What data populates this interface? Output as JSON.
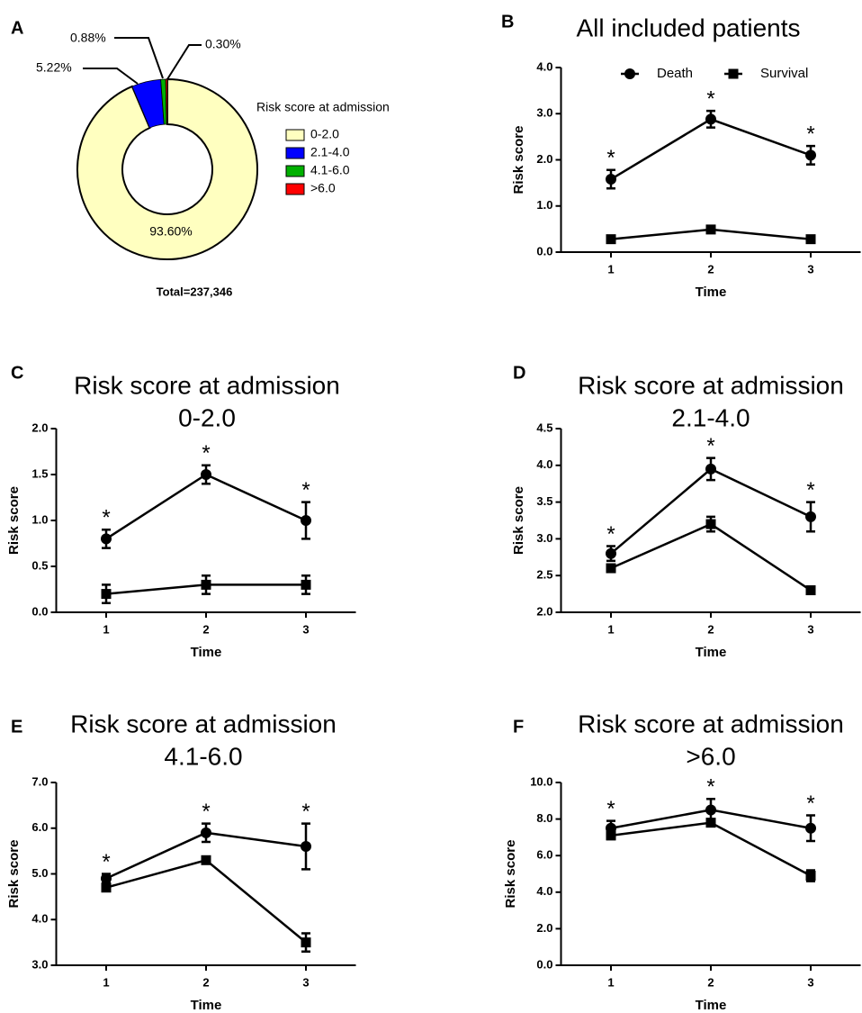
{
  "chart_data": [
    {
      "type": "pie",
      "panel": "A",
      "hole": true,
      "legend_title": "Risk score at admission",
      "categories": [
        "0-2.0",
        "2.1-4.0",
        "4.1-6.0",
        ">6.0"
      ],
      "values": [
        93.6,
        5.22,
        0.88,
        0.3
      ],
      "value_labels": [
        "93.60%",
        "5.22%",
        "0.88%",
        "0.30%"
      ],
      "colors": [
        "#ffffc0",
        "#0000ff",
        "#00b000",
        "#ff0000"
      ],
      "footnote": "Total=237,346"
    },
    {
      "type": "line",
      "panel": "B",
      "title": "All included patients",
      "ylabel": "Risk score",
      "xlabel": "Time",
      "categories": [
        "1",
        "2",
        "3"
      ],
      "ylim": [
        0,
        4
      ],
      "yticks": [
        {
          "value": 0,
          "label": "0.0"
        },
        {
          "value": 1,
          "label": "1.0"
        },
        {
          "value": 2,
          "label": "2.0"
        },
        {
          "value": 3,
          "label": "3.0"
        },
        {
          "value": 4,
          "label": "4.0"
        }
      ],
      "legend": "top",
      "series": [
        {
          "name": "Death",
          "color": "#000000",
          "marker": "circle",
          "values": [
            1.58,
            2.88,
            2.1
          ],
          "errors": [
            0.2,
            0.18,
            0.2
          ]
        },
        {
          "name": "Survival",
          "color": "#000000",
          "marker": "square",
          "values": [
            0.28,
            0.49,
            0.28
          ],
          "errors": [
            0.03,
            0.03,
            0.03
          ]
        }
      ],
      "annotations": [
        "*",
        "*",
        "*"
      ]
    },
    {
      "type": "line",
      "panel": "C",
      "title": "Risk score at admission",
      "subtitle": "0-2.0",
      "ylabel": "Risk score",
      "xlabel": "Time",
      "categories": [
        "1",
        "2",
        "3"
      ],
      "ylim": [
        0,
        2
      ],
      "yticks": [
        {
          "value": 0,
          "label": "0.0"
        },
        {
          "value": 0.5,
          "label": "0.5"
        },
        {
          "value": 1,
          "label": "1.0"
        },
        {
          "value": 1.5,
          "label": "1.5"
        },
        {
          "value": 2,
          "label": "2.0"
        }
      ],
      "series": [
        {
          "name": "Death",
          "color": "#000000",
          "marker": "circle",
          "values": [
            0.8,
            1.5,
            1.0
          ],
          "errors": [
            0.1,
            0.1,
            0.2
          ]
        },
        {
          "name": "Survival",
          "color": "#000000",
          "marker": "square",
          "values": [
            0.2,
            0.3,
            0.3
          ],
          "errors": [
            0.1,
            0.1,
            0.1
          ]
        }
      ],
      "annotations": [
        "*",
        "*",
        "*"
      ]
    },
    {
      "type": "line",
      "panel": "D",
      "title": "Risk score at admission",
      "subtitle": "2.1-4.0",
      "ylabel": "Risk score",
      "xlabel": "Time",
      "categories": [
        "1",
        "2",
        "3"
      ],
      "ylim": [
        2,
        4.5
      ],
      "yticks": [
        {
          "value": 2,
          "label": "2.0"
        },
        {
          "value": 2.5,
          "label": "2.5"
        },
        {
          "value": 3,
          "label": "3.0"
        },
        {
          "value": 3.5,
          "label": "3.5"
        },
        {
          "value": 4,
          "label": "4.0"
        },
        {
          "value": 4.5,
          "label": "4.5"
        }
      ],
      "series": [
        {
          "name": "Death",
          "color": "#000000",
          "marker": "circle",
          "values": [
            2.8,
            3.95,
            3.3
          ],
          "errors": [
            0.1,
            0.15,
            0.2
          ]
        },
        {
          "name": "Survival",
          "color": "#000000",
          "marker": "square",
          "values": [
            2.6,
            3.2,
            2.3
          ],
          "errors": [
            0.05,
            0.1,
            0.02
          ]
        }
      ],
      "annotations": [
        "*",
        "*",
        "*"
      ]
    },
    {
      "type": "line",
      "panel": "E",
      "title": "Risk score at admission",
      "subtitle": "4.1-6.0",
      "ylabel": "Risk score",
      "xlabel": "Time",
      "categories": [
        "1",
        "2",
        "3"
      ],
      "ylim": [
        3,
        7
      ],
      "yticks": [
        {
          "value": 3,
          "label": "3.0"
        },
        {
          "value": 4,
          "label": "4.0"
        },
        {
          "value": 5,
          "label": "5.0"
        },
        {
          "value": 6,
          "label": "6.0"
        },
        {
          "value": 7,
          "label": "7.0"
        }
      ],
      "series": [
        {
          "name": "Death",
          "color": "#000000",
          "marker": "circle",
          "values": [
            4.9,
            5.9,
            5.6
          ],
          "errors": [
            0.1,
            0.2,
            0.5
          ]
        },
        {
          "name": "Survival",
          "color": "#000000",
          "marker": "square",
          "values": [
            4.7,
            5.3,
            3.5
          ],
          "errors": [
            0.05,
            0.05,
            0.2
          ]
        }
      ],
      "annotations": [
        "*",
        "*",
        "*"
      ]
    },
    {
      "type": "line",
      "panel": "F",
      "title": "Risk score at admission",
      "subtitle": ">6.0",
      "ylabel": "Risk score",
      "xlabel": "Time",
      "categories": [
        "1",
        "2",
        "3"
      ],
      "ylim": [
        0,
        10
      ],
      "yticks": [
        {
          "value": 0,
          "label": "0.0"
        },
        {
          "value": 2,
          "label": "2.0"
        },
        {
          "value": 4,
          "label": "4.0"
        },
        {
          "value": 6,
          "label": "6.0"
        },
        {
          "value": 8,
          "label": "8.0"
        },
        {
          "value": 10,
          "label": "10.0"
        }
      ],
      "series": [
        {
          "name": "Death",
          "color": "#000000",
          "marker": "circle",
          "values": [
            7.5,
            8.5,
            7.5
          ],
          "errors": [
            0.4,
            0.6,
            0.7
          ]
        },
        {
          "name": "Survival",
          "color": "#000000",
          "marker": "square",
          "values": [
            7.1,
            7.8,
            4.9
          ],
          "errors": [
            0.2,
            0.2,
            0.3
          ]
        }
      ],
      "annotations": [
        "*",
        "*",
        "*"
      ]
    }
  ]
}
